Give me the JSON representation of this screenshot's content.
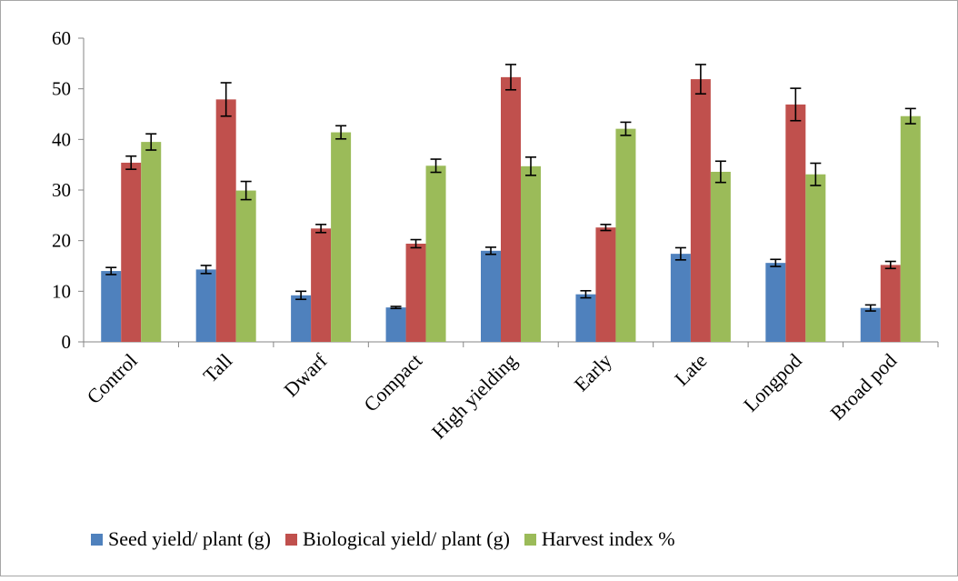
{
  "chart_data": {
    "type": "bar",
    "title": "",
    "xlabel": "",
    "ylabel": "",
    "ylim": [
      0,
      60
    ],
    "yticks": [
      0,
      10,
      20,
      30,
      40,
      50,
      60
    ],
    "grid": false,
    "legend_position": "bottom",
    "categories": [
      "Control",
      "Tall",
      "Dwarf",
      "Compact",
      "High yielding",
      "Early",
      "Late",
      "Longpod",
      "Broad pod"
    ],
    "series": [
      {
        "name": "Seed yield/ plant (g)",
        "color": "#4f81bd",
        "values": [
          14.0,
          14.3,
          9.2,
          6.8,
          18.0,
          9.4,
          17.4,
          15.6,
          6.7
        ],
        "errors": [
          0.7,
          0.8,
          0.8,
          0.2,
          0.7,
          0.7,
          1.2,
          0.7,
          0.6
        ]
      },
      {
        "name": "Biological yield/ plant (g)",
        "color": "#c0504d",
        "values": [
          35.4,
          47.9,
          22.4,
          19.4,
          52.3,
          22.6,
          51.9,
          46.9,
          15.2
        ],
        "errors": [
          1.3,
          3.3,
          0.8,
          0.8,
          2.5,
          0.6,
          2.9,
          3.2,
          0.7
        ]
      },
      {
        "name": "Harvest index %",
        "color": "#9bbb59",
        "values": [
          39.5,
          29.9,
          41.4,
          34.8,
          34.7,
          42.1,
          33.6,
          33.1,
          44.6
        ],
        "errors": [
          1.6,
          1.8,
          1.3,
          1.3,
          1.8,
          1.3,
          2.1,
          2.2,
          1.5
        ]
      }
    ]
  }
}
